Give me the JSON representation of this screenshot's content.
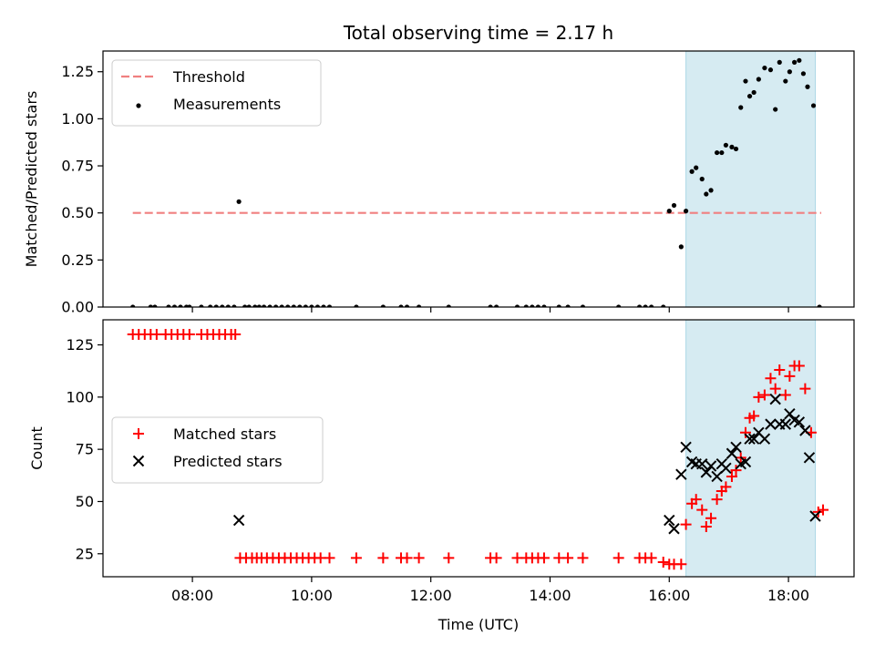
{
  "chart_data": {
    "type": "scatter",
    "title": "Total observing time = 2.17 h",
    "xlabel": "Time (UTC)",
    "xlim_hours": [
      6.5,
      19.1
    ],
    "x_ticks": [
      {
        "value": 8,
        "label": "08:00"
      },
      {
        "value": 10,
        "label": "10:00"
      },
      {
        "value": 12,
        "label": "12:00"
      },
      {
        "value": 14,
        "label": "14:00"
      },
      {
        "value": 16,
        "label": "16:00"
      },
      {
        "value": 18,
        "label": "18:00"
      }
    ],
    "shaded_interval_hours": [
      16.28,
      18.45
    ],
    "shade_color": "#add8e6",
    "panels": [
      {
        "id": "ratio",
        "ylabel": "Matched/Predicted stars",
        "ylim": [
          0,
          1.36
        ],
        "y_ticks": [
          {
            "value": 0,
            "label": "0.00"
          },
          {
            "value": 0.25,
            "label": "0.25"
          },
          {
            "value": 0.5,
            "label": "0.50"
          },
          {
            "value": 0.75,
            "label": "0.75"
          },
          {
            "value": 1.0,
            "label": "1.00"
          },
          {
            "value": 1.25,
            "label": "1.25"
          }
        ],
        "threshold": {
          "name": "Threshold",
          "value": 0.5,
          "x_range": [
            7.0,
            18.55
          ],
          "color": "#f08080"
        },
        "legend": [
          "Threshold",
          "Measurements"
        ],
        "legend_position": "upper-left",
        "series": [
          {
            "name": "Measurements",
            "marker": "dot",
            "color": "#000000",
            "points": [
              [
                7.0,
                0
              ],
              [
                7.3,
                0
              ],
              [
                7.37,
                0
              ],
              [
                7.6,
                0
              ],
              [
                7.7,
                0
              ],
              [
                7.8,
                0
              ],
              [
                7.9,
                0
              ],
              [
                7.95,
                0
              ],
              [
                8.15,
                0
              ],
              [
                8.3,
                0
              ],
              [
                8.4,
                0
              ],
              [
                8.5,
                0
              ],
              [
                8.6,
                0
              ],
              [
                8.7,
                0
              ],
              [
                8.78,
                0.56
              ],
              [
                8.88,
                0
              ],
              [
                8.95,
                0
              ],
              [
                9.05,
                0
              ],
              [
                9.12,
                0
              ],
              [
                9.2,
                0
              ],
              [
                9.3,
                0
              ],
              [
                9.4,
                0
              ],
              [
                9.5,
                0
              ],
              [
                9.6,
                0
              ],
              [
                9.7,
                0
              ],
              [
                9.8,
                0
              ],
              [
                9.9,
                0
              ],
              [
                10.0,
                0
              ],
              [
                10.1,
                0
              ],
              [
                10.2,
                0
              ],
              [
                10.3,
                0
              ],
              [
                10.75,
                0
              ],
              [
                11.2,
                0
              ],
              [
                11.5,
                0
              ],
              [
                11.6,
                0
              ],
              [
                11.8,
                0
              ],
              [
                12.3,
                0
              ],
              [
                13.0,
                0
              ],
              [
                13.1,
                0
              ],
              [
                13.45,
                0
              ],
              [
                13.6,
                0
              ],
              [
                13.7,
                0
              ],
              [
                13.8,
                0
              ],
              [
                13.9,
                0
              ],
              [
                14.15,
                0
              ],
              [
                14.3,
                0
              ],
              [
                14.55,
                0
              ],
              [
                15.15,
                0
              ],
              [
                15.5,
                0
              ],
              [
                15.6,
                0
              ],
              [
                15.7,
                0
              ],
              [
                15.9,
                0
              ],
              [
                16.0,
                0.51
              ],
              [
                16.08,
                0.54
              ],
              [
                16.2,
                0.32
              ],
              [
                16.28,
                0.51
              ],
              [
                16.38,
                0.72
              ],
              [
                16.45,
                0.74
              ],
              [
                16.55,
                0.68
              ],
              [
                16.62,
                0.6
              ],
              [
                16.7,
                0.62
              ],
              [
                16.8,
                0.82
              ],
              [
                16.88,
                0.82
              ],
              [
                16.95,
                0.86
              ],
              [
                17.05,
                0.85
              ],
              [
                17.12,
                0.84
              ],
              [
                17.2,
                1.06
              ],
              [
                17.28,
                1.2
              ],
              [
                17.35,
                1.12
              ],
              [
                17.42,
                1.14
              ],
              [
                17.5,
                1.21
              ],
              [
                17.6,
                1.27
              ],
              [
                17.7,
                1.26
              ],
              [
                17.78,
                1.05
              ],
              [
                17.85,
                1.3
              ],
              [
                17.95,
                1.2
              ],
              [
                18.02,
                1.25
              ],
              [
                18.1,
                1.3
              ],
              [
                18.18,
                1.31
              ],
              [
                18.25,
                1.24
              ],
              [
                18.32,
                1.17
              ],
              [
                18.42,
                1.07
              ],
              [
                18.52,
                0
              ]
            ]
          }
        ]
      },
      {
        "id": "count",
        "ylabel": "Count",
        "ylim": [
          14,
          137
        ],
        "y_ticks": [
          {
            "value": 25,
            "label": "25"
          },
          {
            "value": 50,
            "label": "50"
          },
          {
            "value": 75,
            "label": "75"
          },
          {
            "value": 100,
            "label": "100"
          },
          {
            "value": 125,
            "label": "125"
          }
        ],
        "legend": [
          "Matched stars",
          "Predicted stars"
        ],
        "legend_position": "center-left",
        "series": [
          {
            "name": "Matched stars",
            "marker": "plus",
            "color": "#ff0000",
            "points": [
              [
                7.0,
                130
              ],
              [
                7.1,
                130
              ],
              [
                7.2,
                130
              ],
              [
                7.3,
                130
              ],
              [
                7.4,
                130
              ],
              [
                7.55,
                130
              ],
              [
                7.65,
                130
              ],
              [
                7.75,
                130
              ],
              [
                7.85,
                130
              ],
              [
                7.95,
                130
              ],
              [
                8.15,
                130
              ],
              [
                8.25,
                130
              ],
              [
                8.35,
                130
              ],
              [
                8.45,
                130
              ],
              [
                8.55,
                130
              ],
              [
                8.65,
                130
              ],
              [
                8.72,
                130
              ],
              [
                8.8,
                23
              ],
              [
                8.9,
                23
              ],
              [
                9.0,
                23
              ],
              [
                9.08,
                23
              ],
              [
                9.16,
                23
              ],
              [
                9.25,
                23
              ],
              [
                9.35,
                23
              ],
              [
                9.45,
                23
              ],
              [
                9.55,
                23
              ],
              [
                9.65,
                23
              ],
              [
                9.75,
                23
              ],
              [
                9.85,
                23
              ],
              [
                9.95,
                23
              ],
              [
                10.05,
                23
              ],
              [
                10.15,
                23
              ],
              [
                10.3,
                23
              ],
              [
                10.75,
                23
              ],
              [
                11.2,
                23
              ],
              [
                11.5,
                23
              ],
              [
                11.6,
                23
              ],
              [
                11.8,
                23
              ],
              [
                12.3,
                23
              ],
              [
                13.0,
                23
              ],
              [
                13.1,
                23
              ],
              [
                13.45,
                23
              ],
              [
                13.6,
                23
              ],
              [
                13.7,
                23
              ],
              [
                13.8,
                23
              ],
              [
                13.9,
                23
              ],
              [
                14.15,
                23
              ],
              [
                14.3,
                23
              ],
              [
                14.55,
                23
              ],
              [
                15.15,
                23
              ],
              [
                15.5,
                23
              ],
              [
                15.6,
                23
              ],
              [
                15.7,
                23
              ],
              [
                15.9,
                21
              ],
              [
                16.0,
                20
              ],
              [
                16.08,
                20
              ],
              [
                16.2,
                20
              ],
              [
                16.28,
                39
              ],
              [
                16.38,
                49
              ],
              [
                16.45,
                51
              ],
              [
                16.55,
                46
              ],
              [
                16.62,
                38
              ],
              [
                16.7,
                42
              ],
              [
                16.8,
                51
              ],
              [
                16.88,
                55
              ],
              [
                16.95,
                57
              ],
              [
                17.05,
                62
              ],
              [
                17.12,
                65
              ],
              [
                17.2,
                71
              ],
              [
                17.28,
                83
              ],
              [
                17.35,
                90
              ],
              [
                17.42,
                91
              ],
              [
                17.5,
                100
              ],
              [
                17.6,
                101
              ],
              [
                17.7,
                109
              ],
              [
                17.78,
                104
              ],
              [
                17.85,
                113
              ],
              [
                17.95,
                101
              ],
              [
                18.02,
                110
              ],
              [
                18.1,
                115
              ],
              [
                18.18,
                115
              ],
              [
                18.28,
                104
              ],
              [
                18.38,
                83
              ],
              [
                18.5,
                45
              ],
              [
                18.58,
                46
              ]
            ]
          },
          {
            "name": "Predicted stars",
            "marker": "x",
            "color": "#000000",
            "points": [
              [
                8.78,
                41
              ],
              [
                16.0,
                41
              ],
              [
                16.08,
                37
              ],
              [
                16.2,
                63
              ],
              [
                16.28,
                76
              ],
              [
                16.38,
                69
              ],
              [
                16.45,
                68
              ],
              [
                16.55,
                68
              ],
              [
                16.62,
                64
              ],
              [
                16.7,
                67
              ],
              [
                16.8,
                62
              ],
              [
                16.88,
                68
              ],
              [
                16.95,
                66
              ],
              [
                17.05,
                73
              ],
              [
                17.12,
                76
              ],
              [
                17.2,
                68
              ],
              [
                17.28,
                69
              ],
              [
                17.35,
                80
              ],
              [
                17.42,
                80
              ],
              [
                17.5,
                83
              ],
              [
                17.6,
                80
              ],
              [
                17.7,
                87
              ],
              [
                17.78,
                99
              ],
              [
                17.85,
                87
              ],
              [
                17.95,
                87
              ],
              [
                18.02,
                92
              ],
              [
                18.1,
                89
              ],
              [
                18.18,
                88
              ],
              [
                18.28,
                84
              ],
              [
                18.35,
                71
              ],
              [
                18.45,
                43
              ]
            ]
          }
        ]
      }
    ]
  }
}
